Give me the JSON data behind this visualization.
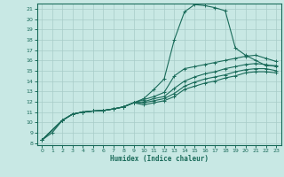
{
  "xlabel": "Humidex (Indice chaleur)",
  "xlim": [
    -0.5,
    23.5
  ],
  "ylim": [
    7.8,
    21.5
  ],
  "xticks": [
    0,
    1,
    2,
    3,
    4,
    5,
    6,
    7,
    8,
    9,
    10,
    11,
    12,
    13,
    14,
    15,
    16,
    17,
    18,
    19,
    20,
    21,
    22,
    23
  ],
  "yticks": [
    8,
    9,
    10,
    11,
    12,
    13,
    14,
    15,
    16,
    17,
    18,
    19,
    20,
    21
  ],
  "bg_color": "#c8e8e4",
  "line_color": "#1a6b5a",
  "grid_color": "#a8ccc8",
  "lines": [
    {
      "x": [
        0,
        1,
        2,
        3,
        4,
        5,
        6,
        7,
        8,
        9,
        10,
        11,
        12,
        13,
        14,
        15,
        16,
        17,
        18,
        19,
        20,
        21,
        22,
        23
      ],
      "y": [
        8.3,
        9.0,
        10.2,
        10.8,
        11.0,
        11.1,
        11.15,
        11.3,
        11.5,
        11.9,
        12.3,
        13.2,
        14.2,
        18.0,
        20.7,
        21.4,
        21.3,
        21.1,
        20.8,
        17.2,
        16.5,
        16.0,
        15.5,
        15.5
      ]
    },
    {
      "x": [
        0,
        2,
        3,
        4,
        5,
        6,
        7,
        8,
        9,
        10,
        11,
        12,
        13,
        14,
        15,
        16,
        17,
        18,
        19,
        20,
        21,
        22,
        23
      ],
      "y": [
        8.3,
        10.2,
        10.8,
        11.0,
        11.1,
        11.15,
        11.3,
        11.5,
        11.9,
        12.2,
        12.5,
        12.9,
        14.5,
        15.2,
        15.4,
        15.6,
        15.8,
        16.0,
        16.2,
        16.4,
        16.5,
        16.2,
        15.9
      ]
    },
    {
      "x": [
        0,
        2,
        3,
        4,
        5,
        6,
        7,
        8,
        9,
        10,
        11,
        12,
        13,
        14,
        15,
        16,
        17,
        18,
        19,
        20,
        21,
        22,
        23
      ],
      "y": [
        8.3,
        10.2,
        10.8,
        11.0,
        11.1,
        11.15,
        11.3,
        11.5,
        11.9,
        12.0,
        12.3,
        12.5,
        13.3,
        14.0,
        14.4,
        14.7,
        14.9,
        15.2,
        15.4,
        15.6,
        15.7,
        15.6,
        15.4
      ]
    },
    {
      "x": [
        0,
        2,
        3,
        4,
        5,
        6,
        7,
        8,
        9,
        10,
        11,
        12,
        13,
        14,
        15,
        16,
        17,
        18,
        19,
        20,
        21,
        22,
        23
      ],
      "y": [
        8.3,
        10.2,
        10.8,
        11.0,
        11.1,
        11.15,
        11.3,
        11.5,
        11.9,
        11.9,
        12.1,
        12.3,
        12.8,
        13.5,
        13.9,
        14.2,
        14.4,
        14.6,
        14.9,
        15.1,
        15.2,
        15.2,
        15.0
      ]
    },
    {
      "x": [
        0,
        2,
        3,
        4,
        5,
        6,
        7,
        8,
        9,
        10,
        11,
        12,
        13,
        14,
        15,
        16,
        17,
        18,
        19,
        20,
        21,
        22,
        23
      ],
      "y": [
        8.3,
        10.2,
        10.8,
        11.0,
        11.1,
        11.15,
        11.3,
        11.5,
        11.9,
        11.7,
        11.9,
        12.1,
        12.5,
        13.2,
        13.5,
        13.8,
        14.0,
        14.3,
        14.5,
        14.8,
        14.9,
        14.9,
        14.8
      ]
    }
  ]
}
